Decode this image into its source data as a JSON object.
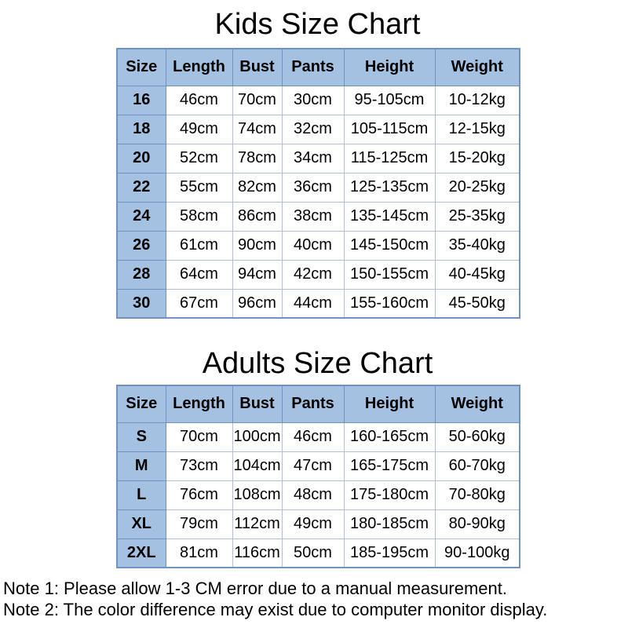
{
  "colors": {
    "header_bg": "#a4c1e2",
    "border_strong": "#6e93c0",
    "border_inner": "#aebfd6",
    "page_bg": "#ffffff",
    "text": "#000000"
  },
  "kids_chart": {
    "title": "Kids Size Chart",
    "headers": [
      "Size",
      "Length",
      "Bust",
      "Pants",
      "Height",
      "Weight"
    ],
    "rows": [
      [
        "16",
        "46cm",
        "70cm",
        "30cm",
        "95-105cm",
        "10-12kg"
      ],
      [
        "18",
        "49cm",
        "74cm",
        "32cm",
        "105-115cm",
        "12-15kg"
      ],
      [
        "20",
        "52cm",
        "78cm",
        "34cm",
        "115-125cm",
        "15-20kg"
      ],
      [
        "22",
        "55cm",
        "82cm",
        "36cm",
        "125-135cm",
        "20-25kg"
      ],
      [
        "24",
        "58cm",
        "86cm",
        "38cm",
        "135-145cm",
        "25-35kg"
      ],
      [
        "26",
        "61cm",
        "90cm",
        "40cm",
        "145-150cm",
        "35-40kg"
      ],
      [
        "28",
        "64cm",
        "94cm",
        "42cm",
        "150-155cm",
        "40-45kg"
      ],
      [
        "30",
        "67cm",
        "96cm",
        "44cm",
        "155-160cm",
        "45-50kg"
      ]
    ]
  },
  "adults_chart": {
    "title": "Adults Size Chart",
    "headers": [
      "Size",
      "Length",
      "Bust",
      "Pants",
      "Height",
      "Weight"
    ],
    "rows": [
      [
        "S",
        "70cm",
        "100cm",
        "46cm",
        "160-165cm",
        "50-60kg"
      ],
      [
        "M",
        "73cm",
        "104cm",
        "47cm",
        "165-175cm",
        "60-70kg"
      ],
      [
        "L",
        "76cm",
        "108cm",
        "48cm",
        "175-180cm",
        "70-80kg"
      ],
      [
        "XL",
        "79cm",
        "112cm",
        "49cm",
        "180-185cm",
        "80-90kg"
      ],
      [
        "2XL",
        "81cm",
        "116cm",
        "50cm",
        "185-195cm",
        "90-100kg"
      ]
    ]
  },
  "notes": [
    "Note 1: Please allow 1-3 CM error due to a manual measurement.",
    "Note 2: The color difference may exist due to computer monitor display."
  ]
}
